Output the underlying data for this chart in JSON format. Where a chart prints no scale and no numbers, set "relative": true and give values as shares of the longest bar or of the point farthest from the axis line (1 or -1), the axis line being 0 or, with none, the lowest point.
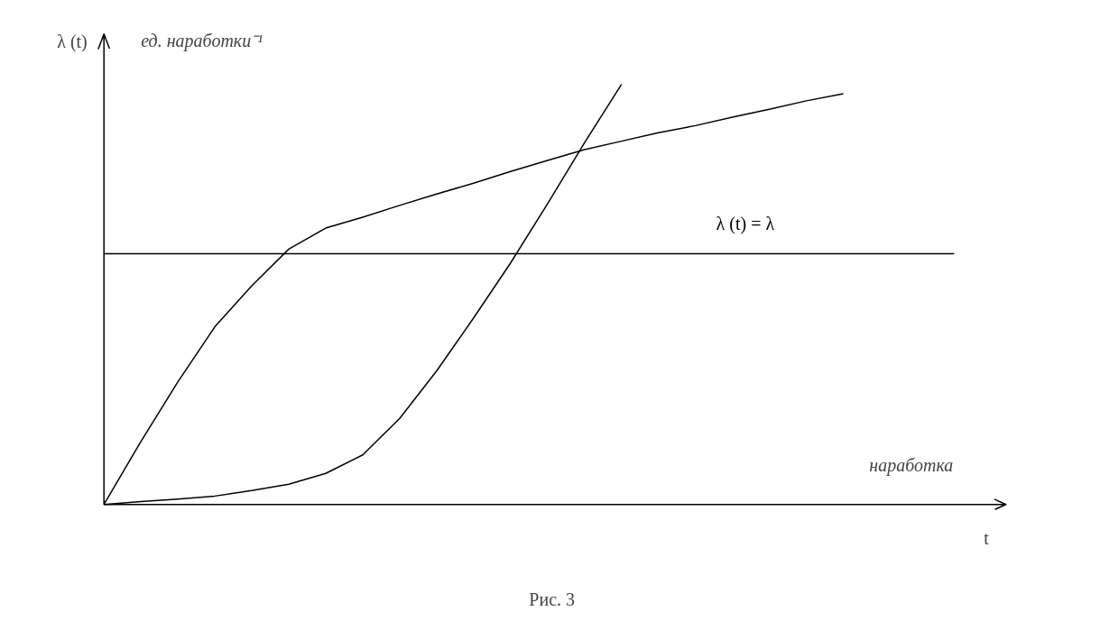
{
  "chart_data": {
    "type": "line",
    "relative": true,
    "line_style": "solid",
    "ylabel": "λ (t)",
    "xlabel": "t",
    "annotations": [
      "ед. наработки⁻¹",
      "наработка",
      "Рис. 3"
    ],
    "categories": [
      null,
      null,
      null,
      null,
      null,
      null,
      null,
      null,
      null,
      null,
      null,
      null,
      null,
      null,
      null,
      null,
      null,
      null,
      null,
      null,
      null,
      null,
      null,
      null
    ],
    "series": [
      {
        "color": "#000000",
        "values": [
          0,
          0.15,
          0.292,
          0.423,
          0.521,
          0.608,
          0.658,
          0.684,
          0.712,
          0.739,
          0.765,
          0.793,
          0.819,
          0.845,
          0.865,
          0.885,
          0.902,
          0.922,
          0.941,
          0.961,
          0.978,
          null,
          null,
          null
        ]
      },
      {
        "color": "#000000",
        "values": [
          0,
          0.007,
          0.013,
          0.02,
          0.033,
          0.048,
          0.074,
          0.118,
          0.205,
          0.318,
          0.444,
          0.575,
          0.716,
          0.861,
          1.0,
          null,
          null,
          null,
          null,
          null,
          null,
          null,
          null,
          null
        ]
      },
      {
        "name": "λ (t) = λ",
        "color": "#000000",
        "values": [
          0.597,
          0.597,
          0.597,
          0.597,
          0.597,
          0.597,
          0.597,
          0.597,
          0.597,
          0.597,
          0.597,
          0.597,
          0.597,
          0.597,
          0.597,
          0.597,
          0.597,
          0.597,
          0.597,
          0.597,
          0.597,
          0.597,
          0.597,
          0.597
        ]
      }
    ]
  }
}
